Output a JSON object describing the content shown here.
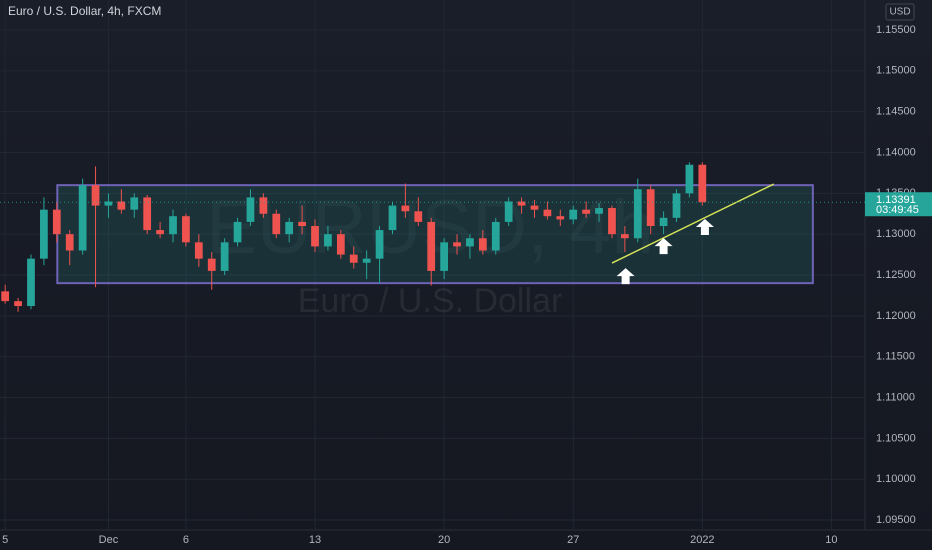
{
  "chart_data": {
    "type": "candlestick",
    "title": "Euro / U.S. Dollar, 4h, FXCM",
    "watermark": "EURUSD, 4h",
    "subtitle": "Euro / U.S. Dollar",
    "currency": "USD",
    "up_color": "#26a69a",
    "down_color": "#ef5350",
    "grid": true,
    "x": [
      0,
      0.5,
      1,
      1.5,
      2,
      2.5,
      3,
      3.5,
      4,
      4.5,
      5,
      5.5,
      6,
      6.5,
      7,
      7.5,
      8,
      8.5,
      9,
      9.5,
      10,
      10.5,
      11,
      11.5,
      12,
      12.5,
      13,
      13.5,
      14,
      14.5,
      15,
      15.5,
      16,
      16.5,
      17,
      17.5,
      18,
      18.5,
      19,
      19.5,
      20,
      20.5,
      21,
      21.5,
      22,
      22.5,
      23,
      23.5,
      24,
      24.5,
      25,
      25.5,
      26,
      26.5,
      27
    ],
    "open": [
      1.123,
      1.1218,
      1.1212,
      1.127,
      1.133,
      1.13,
      1.128,
      1.136,
      1.1335,
      1.134,
      1.133,
      1.1345,
      1.1305,
      1.13,
      1.1322,
      1.129,
      1.127,
      1.1255,
      1.129,
      1.1315,
      1.1345,
      1.1325,
      1.13,
      1.1315,
      1.131,
      1.1285,
      1.13,
      1.1275,
      1.1265,
      1.127,
      1.1305,
      1.1335,
      1.1328,
      1.1315,
      1.1255,
      1.129,
      1.1285,
      1.1295,
      1.128,
      1.1315,
      1.134,
      1.1335,
      1.133,
      1.1322,
      1.1318,
      1.133,
      1.1325,
      1.1332,
      1.13,
      1.1295,
      1.1355,
      1.131,
      1.132,
      1.135,
      1.1385
    ],
    "high": [
      1.1238,
      1.1222,
      1.1275,
      1.1345,
      1.134,
      1.1305,
      1.1368,
      1.1383,
      1.135,
      1.1355,
      1.135,
      1.1348,
      1.1315,
      1.133,
      1.1325,
      1.13,
      1.1278,
      1.1295,
      1.132,
      1.1355,
      1.135,
      1.133,
      1.132,
      1.1335,
      1.1318,
      1.131,
      1.1305,
      1.1285,
      1.128,
      1.131,
      1.134,
      1.1362,
      1.1345,
      1.132,
      1.1295,
      1.13,
      1.13,
      1.1305,
      1.132,
      1.1345,
      1.1345,
      1.1342,
      1.134,
      1.133,
      1.1335,
      1.134,
      1.1338,
      1.1335,
      1.131,
      1.1368,
      1.136,
      1.1328,
      1.1355,
      1.1388,
      1.1388
    ],
    "low": [
      1.1215,
      1.1205,
      1.1208,
      1.1262,
      1.129,
      1.1262,
      1.1275,
      1.1235,
      1.132,
      1.1325,
      1.132,
      1.13,
      1.1295,
      1.129,
      1.1285,
      1.126,
      1.1232,
      1.125,
      1.1285,
      1.131,
      1.132,
      1.1295,
      1.129,
      1.13,
      1.1278,
      1.128,
      1.127,
      1.1258,
      1.1245,
      1.124,
      1.13,
      1.132,
      1.131,
      1.1237,
      1.1245,
      1.1275,
      1.127,
      1.1275,
      1.1275,
      1.131,
      1.1325,
      1.132,
      1.1318,
      1.131,
      1.1312,
      1.132,
      1.1315,
      1.1295,
      1.1278,
      1.129,
      1.13,
      1.13,
      1.1315,
      1.1345,
      1.1335
    ],
    "close": [
      1.1218,
      1.1212,
      1.127,
      1.133,
      1.13,
      1.128,
      1.136,
      1.1335,
      1.134,
      1.133,
      1.1345,
      1.1305,
      1.13,
      1.1322,
      1.129,
      1.127,
      1.1255,
      1.129,
      1.1315,
      1.1345,
      1.1325,
      1.13,
      1.1315,
      1.131,
      1.1285,
      1.13,
      1.1275,
      1.1265,
      1.127,
      1.1305,
      1.1335,
      1.1328,
      1.1315,
      1.1255,
      1.129,
      1.1285,
      1.1295,
      1.128,
      1.1315,
      1.134,
      1.1335,
      1.133,
      1.1322,
      1.1318,
      1.133,
      1.1325,
      1.1332,
      1.13,
      1.1295,
      1.1355,
      1.131,
      1.132,
      1.135,
      1.1385,
      1.13391
    ],
    "xlim": [
      -0.2,
      33.3
    ],
    "ylim": [
      1.09378,
      1.15867
    ],
    "xticks": [
      {
        "value": 0,
        "label": "5"
      },
      {
        "value": 4,
        "label": "Dec"
      },
      {
        "value": 7,
        "label": "6"
      },
      {
        "value": 12,
        "label": "13"
      },
      {
        "value": 17,
        "label": "20"
      },
      {
        "value": 22,
        "label": "27"
      },
      {
        "value": 27,
        "label": "2022"
      },
      {
        "value": 32,
        "label": "10"
      }
    ],
    "yticks": [
      {
        "value": 1.155,
        "label": "1.15500"
      },
      {
        "value": 1.15,
        "label": "1.15000"
      },
      {
        "value": 1.145,
        "label": "1.14500"
      },
      {
        "value": 1.14,
        "label": "1.14000"
      },
      {
        "value": 1.135,
        "label": "1.13500"
      },
      {
        "value": 1.13,
        "label": "1.13000"
      },
      {
        "value": 1.125,
        "label": "1.12500"
      },
      {
        "value": 1.12,
        "label": "1.12000"
      },
      {
        "value": 1.115,
        "label": "1.11500"
      },
      {
        "value": 1.11,
        "label": "1.11000"
      },
      {
        "value": 1.105,
        "label": "1.10500"
      },
      {
        "value": 1.1,
        "label": "1.10000"
      },
      {
        "value": 1.095,
        "label": "1.09500"
      }
    ],
    "last_price": {
      "value": 1.13391,
      "label": "1.13391",
      "countdown": "03:49:45"
    },
    "box": {
      "x": [
        2.02,
        31.28
      ],
      "y": [
        1.124,
        1.136
      ],
      "color": "#6f63b8"
    },
    "trendline": {
      "x": [
        23.5,
        29.77
      ],
      "y": [
        1.12646,
        1.13614
      ],
      "color": "#d4e157"
    },
    "arrows": {
      "x": [
        24.03,
        25.5,
        27.1
      ],
      "y": [
        1.12585,
        1.12952,
        1.13185
      ]
    }
  }
}
